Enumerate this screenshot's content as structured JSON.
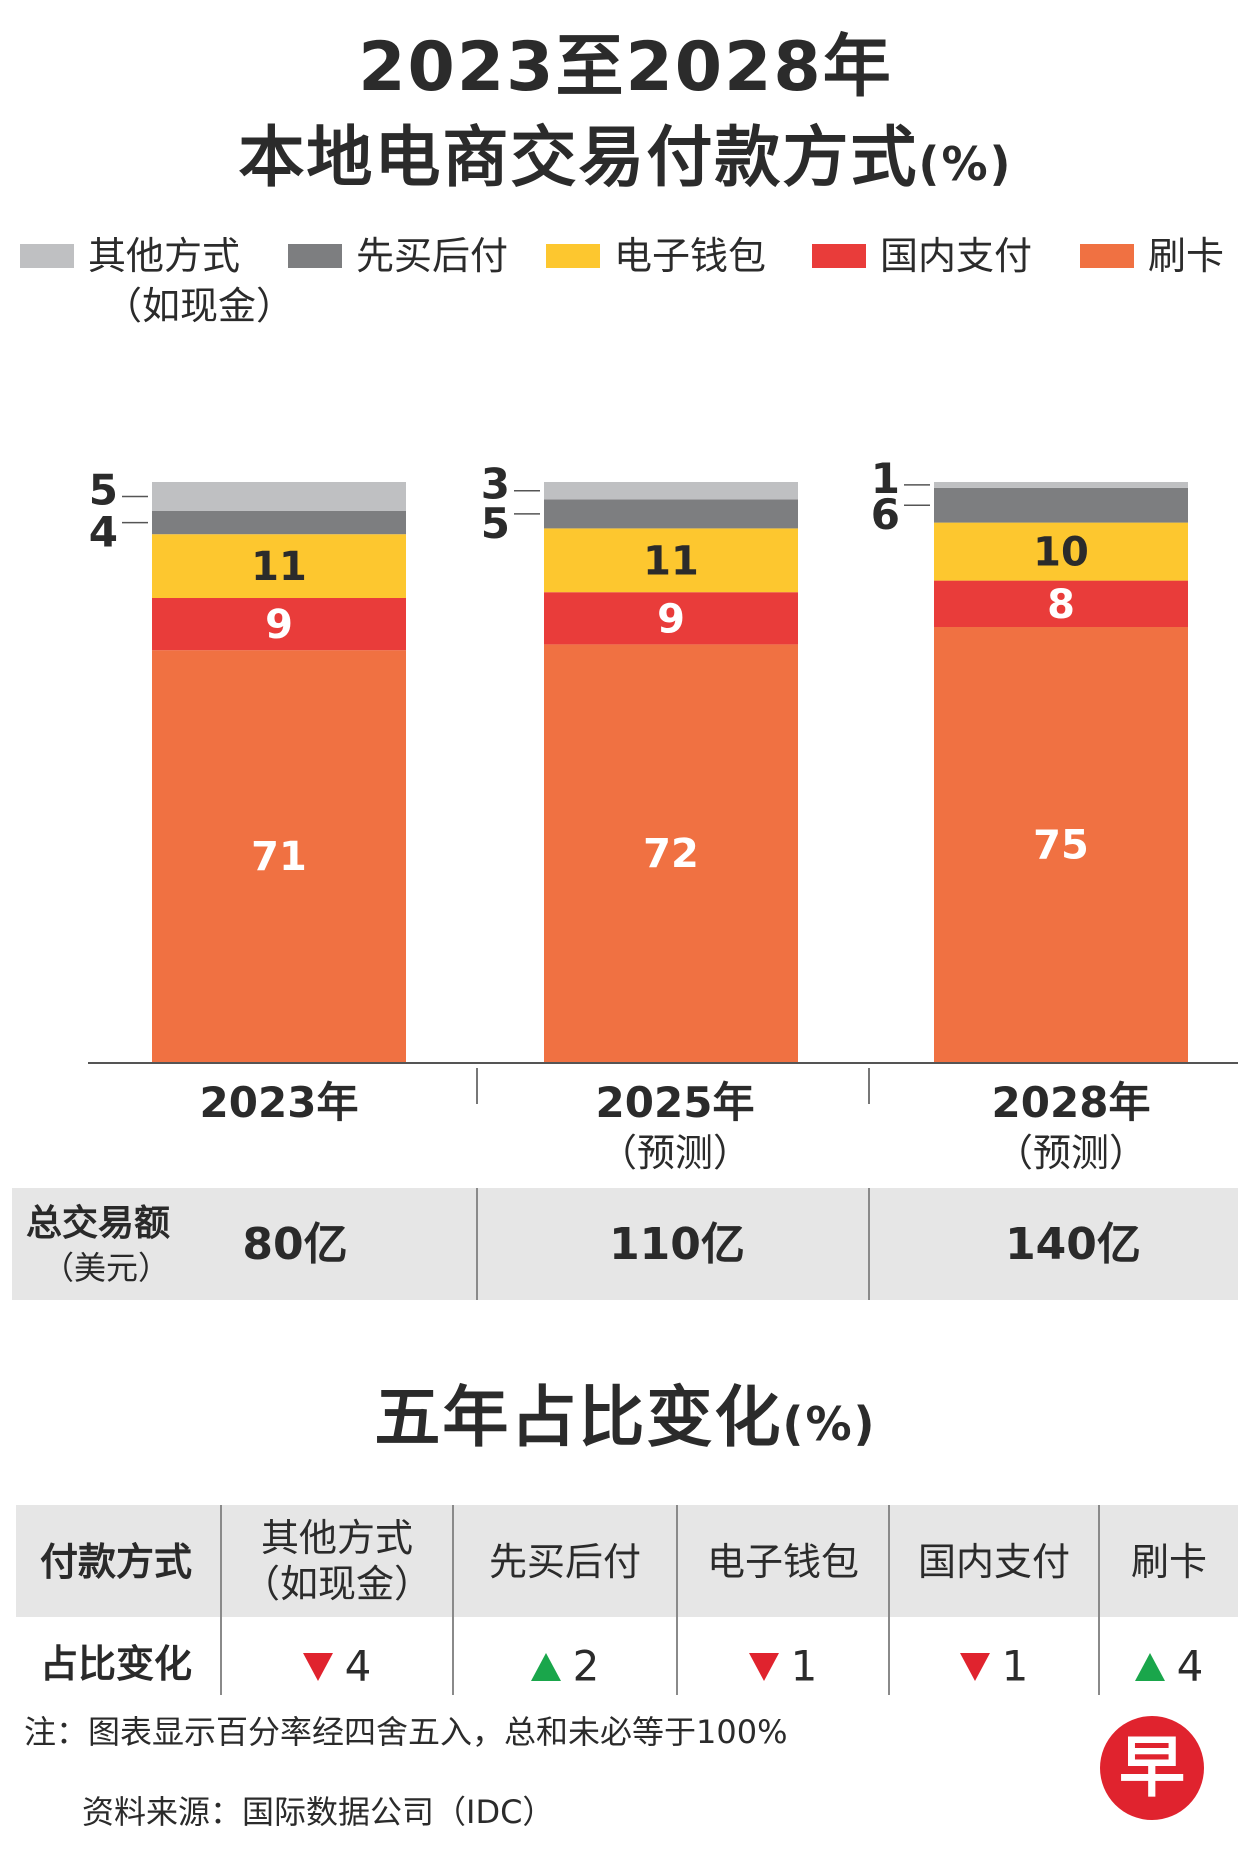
{
  "title_line1": "2023至2028年",
  "title_line2": "本地电商交易付款方式",
  "title_unit": "(%)",
  "legend": [
    {
      "label": "其他方式",
      "sub": "（如现金）",
      "color": "#bfc0c2"
    },
    {
      "label": "先买后付",
      "sub": "",
      "color": "#7d7e80"
    },
    {
      "label": "电子钱包",
      "sub": "",
      "color": "#fdc72f"
    },
    {
      "label": "国内支付",
      "sub": "",
      "color": "#e93c3a"
    },
    {
      "label": "刷卡",
      "sub": "",
      "color": "#f07142"
    }
  ],
  "chart_data": {
    "type": "bar",
    "stacked": true,
    "categories": [
      "2023年",
      "2025年",
      "2028年"
    ],
    "category_notes": [
      "",
      "（预测）",
      "（预测）"
    ],
    "series": [
      {
        "name": "刷卡",
        "values": [
          71,
          72,
          75
        ],
        "color": "#f07142"
      },
      {
        "name": "国内支付",
        "values": [
          9,
          9,
          8
        ],
        "color": "#e93c3a"
      },
      {
        "name": "电子钱包",
        "values": [
          11,
          11,
          10
        ],
        "color": "#fdc72f"
      },
      {
        "name": "先买后付",
        "values": [
          4,
          5,
          6
        ],
        "color": "#7d7e80"
      },
      {
        "name": "其他方式（如现金）",
        "values": [
          5,
          3,
          1
        ],
        "color": "#bfc0c2"
      }
    ],
    "ylim": [
      0,
      100
    ],
    "ylabel": "%"
  },
  "totals": {
    "label": "总交易额",
    "sub": "（美元）",
    "values": [
      "80亿",
      "110亿",
      "140亿"
    ]
  },
  "change_title": "五年占比变化",
  "change_unit": "(%)",
  "change_table": {
    "header_label": "付款方式",
    "row_label": "占比变化",
    "columns": [
      {
        "name": "其他方式",
        "sub": "（如现金）",
        "direction": "down",
        "value": "4"
      },
      {
        "name": "先买后付",
        "sub": "",
        "direction": "up",
        "value": "2"
      },
      {
        "name": "电子钱包",
        "sub": "",
        "direction": "down",
        "value": "1"
      },
      {
        "name": "国内支付",
        "sub": "",
        "direction": "down",
        "value": "1"
      },
      {
        "name": "刷卡",
        "sub": "",
        "direction": "up",
        "value": "4"
      }
    ]
  },
  "note": "注：图表显示百分率经四舍五入，总和未必等于100%",
  "source": "资料来源：国际数据公司（IDC）",
  "logo_text": "早"
}
